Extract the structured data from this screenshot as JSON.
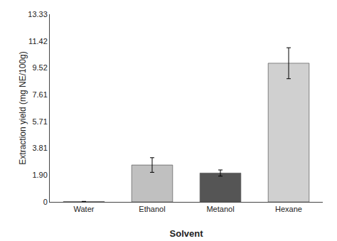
{
  "chart_data": {
    "type": "bar",
    "xlabel": "Solvent",
    "ylabel": "Extraction yield (mg NE/100g)",
    "categories": [
      "Water",
      "Ethanol",
      "Metanol",
      "Hexane"
    ],
    "values": [
      0.03,
      2.62,
      2.05,
      9.85
    ],
    "errors": [
      0.0,
      0.52,
      0.22,
      1.1
    ],
    "colors": [
      "#c8c8c8",
      "#c0c0c0",
      "#555555",
      "#d0d0d0"
    ],
    "ylim": [
      0,
      13.33
    ],
    "yticks": [
      0,
      {
        "value": 1.9,
        "label": "1.90"
      },
      3.81,
      5.71,
      7.61,
      9.52,
      11.42,
      13.33
    ],
    "grid": false
  }
}
